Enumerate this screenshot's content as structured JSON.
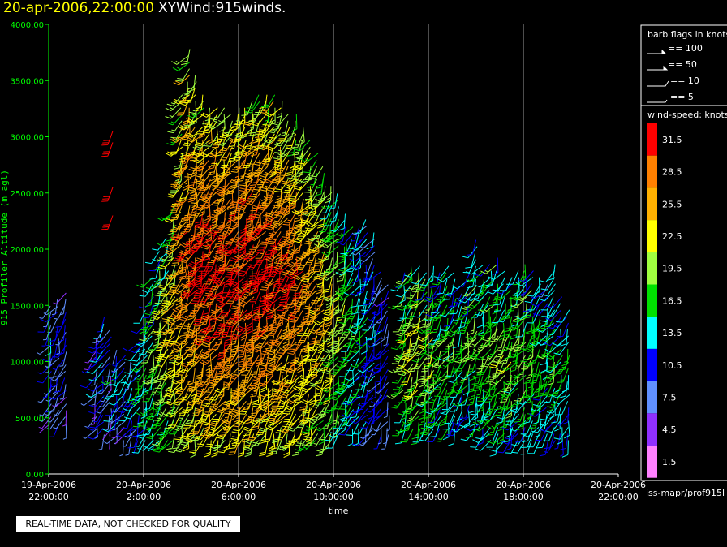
{
  "header": {
    "datetime": "20-apr-2006,22:00:00",
    "product": "XYWind:915winds."
  },
  "notice": "REAL-TIME DATA, NOT CHECKED FOR QUALITY",
  "footer_id": "iss-mapr/prof915l",
  "barb_legend": {
    "title": "barb flags in knots",
    "items": [
      "== 100",
      "== 50",
      "== 10",
      "== 5"
    ]
  },
  "speed_legend": {
    "title": "wind-speed: knots",
    "bins": [
      {
        "label": "31.5",
        "color": "#ff0000"
      },
      {
        "label": "28.5",
        "color": "#ff8000"
      },
      {
        "label": "25.5",
        "color": "#ffb000"
      },
      {
        "label": "22.5",
        "color": "#ffff00"
      },
      {
        "label": "19.5",
        "color": "#a0ff40"
      },
      {
        "label": "16.5",
        "color": "#00e000"
      },
      {
        "label": "13.5",
        "color": "#00ffff"
      },
      {
        "label": "10.5",
        "color": "#0000ff"
      },
      {
        "label": "7.5",
        "color": "#6090ff"
      },
      {
        "label": "4.5",
        "color": "#9030ff"
      },
      {
        "label": "1.5",
        "color": "#ff80ff"
      }
    ]
  },
  "chart_data": {
    "type": "scatter",
    "ylabel": "915 Profiler Altitude (m agl)",
    "xlabel": "time",
    "ylim": [
      0,
      4000
    ],
    "yticks": [
      "0.00",
      "500.00",
      "1000.00",
      "1500.00",
      "2000.00",
      "2500.00",
      "3000.00",
      "3500.00",
      "4000.00"
    ],
    "xticks": [
      {
        "date": "19-Apr-2006",
        "time": "22:00:00"
      },
      {
        "date": "20-Apr-2006",
        "time": "2:00:00"
      },
      {
        "date": "20-Apr-2006",
        "time": "6:00:00"
      },
      {
        "date": "20-Apr-2006",
        "time": "10:00:00"
      },
      {
        "date": "20-Apr-2006",
        "time": "14:00:00"
      },
      {
        "date": "20-Apr-2006",
        "time": "18:00:00"
      },
      {
        "date": "20-Apr-2006",
        "time": "22:00:00"
      }
    ],
    "grid": "vertical",
    "columns": [
      {
        "hour": 0.1,
        "bottom": 450,
        "top": 1500,
        "peak": 9
      },
      {
        "hour": 0.4,
        "bottom": 450,
        "top": 1600,
        "peak": 10
      },
      {
        "hour": 0.7,
        "bottom": 450,
        "top": 1650,
        "peak": 10
      },
      {
        "hour": 2.0,
        "bottom": 400,
        "top": 1250,
        "peak": 9
      },
      {
        "hour": 2.3,
        "bottom": 350,
        "top": 1450,
        "peak": 12
      },
      {
        "hour": 2.6,
        "bottom": 350,
        "top": 1300,
        "peak": 8
      },
      {
        "hour": 2.9,
        "bottom": 350,
        "top": 1150,
        "peak": 14
      },
      {
        "hour": 3.2,
        "bottom": 300,
        "top": 1100,
        "peak": 10
      },
      {
        "hour": 3.5,
        "bottom": 300,
        "top": 1000,
        "peak": 12
      },
      {
        "hour": 3.8,
        "bottom": 300,
        "top": 1200,
        "peak": 14
      },
      {
        "hour": 4.1,
        "bottom": 300,
        "top": 1500,
        "peak": 16
      },
      {
        "hour": 4.4,
        "bottom": 300,
        "top": 1800,
        "peak": 18
      },
      {
        "hour": 4.7,
        "bottom": 300,
        "top": 2000,
        "peak": 20
      },
      {
        "hour": 5.0,
        "bottom": 300,
        "top": 2150,
        "peak": 22
      },
      {
        "hour": 5.3,
        "bottom": 300,
        "top": 2400,
        "peak": 24
      },
      {
        "hour": 5.6,
        "bottom": 300,
        "top": 3400,
        "peak": 27
      },
      {
        "hour": 5.9,
        "bottom": 300,
        "top": 3800,
        "peak": 29
      },
      {
        "hour": 6.2,
        "bottom": 300,
        "top": 3600,
        "peak": 30
      },
      {
        "hour": 6.5,
        "bottom": 300,
        "top": 3400,
        "peak": 31
      },
      {
        "hour": 6.8,
        "bottom": 300,
        "top": 3300,
        "peak": 32
      },
      {
        "hour": 7.1,
        "bottom": 300,
        "top": 3300,
        "peak": 32
      },
      {
        "hour": 7.4,
        "bottom": 300,
        "top": 3300,
        "peak": 32
      },
      {
        "hour": 7.7,
        "bottom": 300,
        "top": 3250,
        "peak": 32
      },
      {
        "hour": 8.0,
        "bottom": 300,
        "top": 3300,
        "peak": 32
      },
      {
        "hour": 8.3,
        "bottom": 300,
        "top": 3300,
        "peak": 32
      },
      {
        "hour": 8.6,
        "bottom": 300,
        "top": 3350,
        "peak": 32
      },
      {
        "hour": 8.9,
        "bottom": 300,
        "top": 3400,
        "peak": 32
      },
      {
        "hour": 9.2,
        "bottom": 300,
        "top": 3400,
        "peak": 32
      },
      {
        "hour": 9.5,
        "bottom": 300,
        "top": 3400,
        "peak": 31
      },
      {
        "hour": 9.8,
        "bottom": 300,
        "top": 3350,
        "peak": 31
      },
      {
        "hour": 10.1,
        "bottom": 300,
        "top": 3250,
        "peak": 30
      },
      {
        "hour": 10.4,
        "bottom": 300,
        "top": 3200,
        "peak": 30
      },
      {
        "hour": 10.7,
        "bottom": 300,
        "top": 3100,
        "peak": 29
      },
      {
        "hour": 11.0,
        "bottom": 300,
        "top": 3000,
        "peak": 28
      },
      {
        "hour": 11.3,
        "bottom": 300,
        "top": 2900,
        "peak": 27
      },
      {
        "hour": 11.6,
        "bottom": 300,
        "top": 2750,
        "peak": 26
      },
      {
        "hour": 11.9,
        "bottom": 300,
        "top": 2600,
        "peak": 24
      },
      {
        "hour": 12.2,
        "bottom": 350,
        "top": 2500,
        "peak": 22
      },
      {
        "hour": 12.5,
        "bottom": 400,
        "top": 2350,
        "peak": 20
      },
      {
        "hour": 12.8,
        "bottom": 400,
        "top": 2250,
        "peak": 18
      },
      {
        "hour": 13.1,
        "bottom": 400,
        "top": 2200,
        "peak": 16
      },
      {
        "hour": 13.4,
        "bottom": 350,
        "top": 2300,
        "peak": 14
      },
      {
        "hour": 13.7,
        "bottom": 350,
        "top": 2200,
        "peak": 12
      },
      {
        "hour": 14.0,
        "bottom": 350,
        "top": 1800,
        "peak": 11
      },
      {
        "hour": 14.3,
        "bottom": 350,
        "top": 1700,
        "peak": 10
      },
      {
        "hour": 15.0,
        "bottom": 400,
        "top": 1800,
        "peak": 20
      },
      {
        "hour": 15.3,
        "bottom": 400,
        "top": 1900,
        "peak": 22
      },
      {
        "hour": 15.6,
        "bottom": 400,
        "top": 1900,
        "peak": 23
      },
      {
        "hour": 15.9,
        "bottom": 400,
        "top": 1800,
        "peak": 20
      },
      {
        "hour": 16.2,
        "bottom": 400,
        "top": 1850,
        "peak": 21
      },
      {
        "hour": 16.5,
        "bottom": 400,
        "top": 1800,
        "peak": 18
      },
      {
        "hour": 16.8,
        "bottom": 400,
        "top": 1900,
        "peak": 19
      },
      {
        "hour": 17.1,
        "bottom": 400,
        "top": 1800,
        "peak": 17
      },
      {
        "hour": 17.4,
        "bottom": 450,
        "top": 1700,
        "peak": 16
      },
      {
        "hour": 17.7,
        "bottom": 450,
        "top": 1800,
        "peak": 18
      },
      {
        "hour": 18.0,
        "bottom": 400,
        "top": 2100,
        "peak": 19
      },
      {
        "hour": 18.3,
        "bottom": 350,
        "top": 1900,
        "peak": 18
      },
      {
        "hour": 18.6,
        "bottom": 300,
        "top": 1900,
        "peak": 18
      },
      {
        "hour": 18.9,
        "bottom": 300,
        "top": 1950,
        "peak": 19
      },
      {
        "hour": 19.2,
        "bottom": 300,
        "top": 1850,
        "peak": 20
      },
      {
        "hour": 19.5,
        "bottom": 300,
        "top": 1800,
        "peak": 19
      },
      {
        "hour": 19.8,
        "bottom": 300,
        "top": 1850,
        "peak": 18
      },
      {
        "hour": 20.1,
        "bottom": 300,
        "top": 1900,
        "peak": 19
      },
      {
        "hour": 20.4,
        "bottom": 300,
        "top": 1850,
        "peak": 18
      },
      {
        "hour": 20.7,
        "bottom": 300,
        "top": 1800,
        "peak": 17
      },
      {
        "hour": 21.0,
        "bottom": 300,
        "top": 1700,
        "peak": 16
      },
      {
        "hour": 21.3,
        "bottom": 300,
        "top": 1900,
        "peak": 17
      },
      {
        "hour": 21.6,
        "bottom": 300,
        "top": 1600,
        "peak": 16
      },
      {
        "hour": 21.9,
        "bottom": 300,
        "top": 1500,
        "peak": 15
      }
    ],
    "isolated": [
      {
        "hour": 2.7,
        "alt": 2300,
        "speed": 32
      },
      {
        "hour": 2.7,
        "alt": 2550,
        "speed": 32
      },
      {
        "hour": 2.7,
        "alt": 2950,
        "speed": 32
      },
      {
        "hour": 2.7,
        "alt": 3050,
        "speed": 32
      }
    ]
  }
}
